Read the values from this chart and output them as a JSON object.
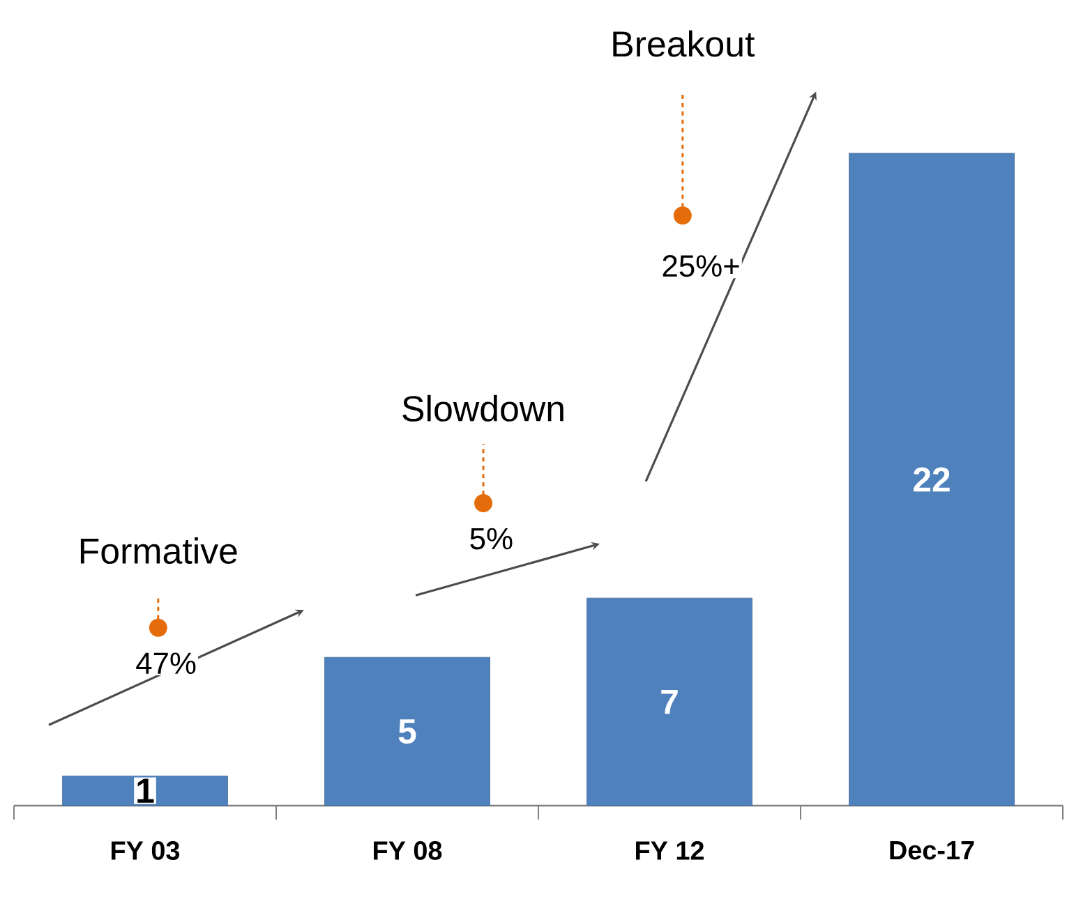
{
  "chart_data": {
    "type": "bar",
    "categories": [
      "FY 03",
      "FY 08",
      "FY 12",
      "Dec-17"
    ],
    "values": [
      1,
      5,
      7,
      22
    ],
    "color": "#4f81bd",
    "data_labels": true,
    "annotations": [
      "Formative",
      "47%",
      "Slowdown",
      "5%",
      "Breakout",
      "25%+"
    ]
  }
}
